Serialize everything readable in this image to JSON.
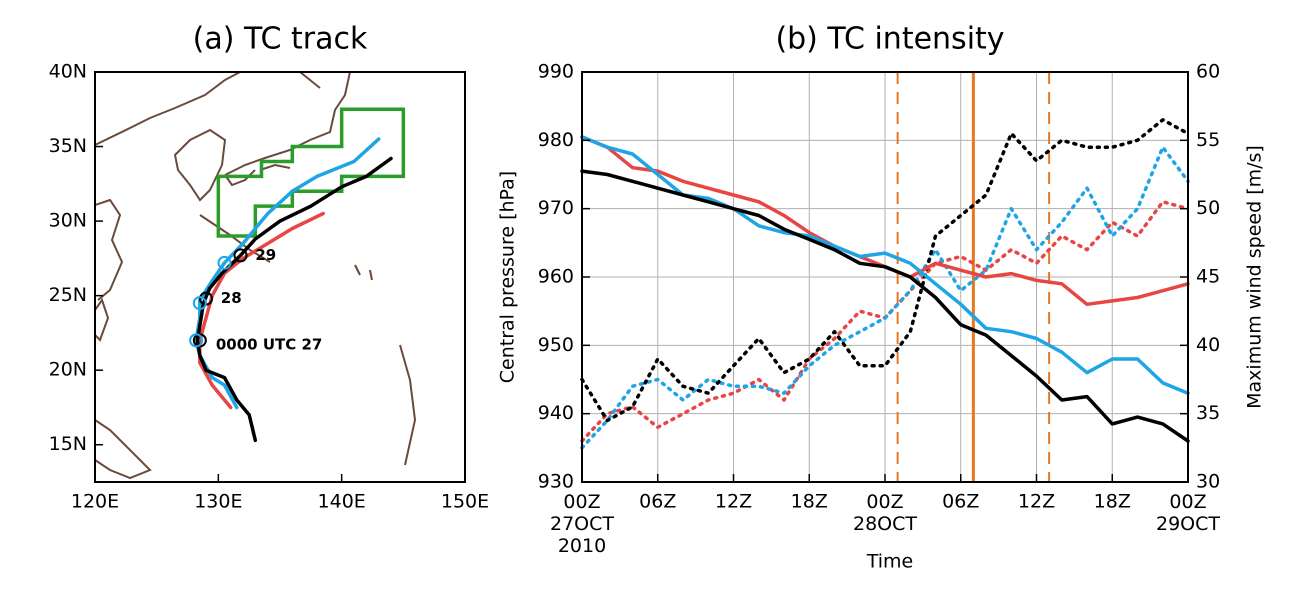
{
  "chart_data": [
    {
      "type": "line",
      "title": "(a) TC track",
      "xlim": [
        120,
        150
      ],
      "ylim": [
        12.5,
        40
      ],
      "xticks": [
        {
          "value": 120,
          "label": "120E"
        },
        {
          "value": 130,
          "label": "130E"
        },
        {
          "value": 140,
          "label": "140E"
        },
        {
          "value": 150,
          "label": "150E"
        }
      ],
      "yticks": [
        {
          "value": 15,
          "label": "15N"
        },
        {
          "value": 20,
          "label": "20N"
        },
        {
          "value": 25,
          "label": "25N"
        },
        {
          "value": 30,
          "label": "30N"
        },
        {
          "value": 35,
          "label": "35N"
        },
        {
          "value": 40,
          "label": "40N"
        }
      ],
      "series": [
        {
          "color": "#e84545",
          "x": [
            131,
            129.5,
            128.5,
            128.5,
            129,
            129.5,
            130.5,
            132,
            134,
            136,
            138.5
          ],
          "values": [
            17.5,
            19,
            20.5,
            22,
            23.5,
            25,
            26.5,
            27.5,
            28.5,
            29.5,
            30.5
          ]
        },
        {
          "color": "#1ea5e6",
          "x": [
            131.5,
            130.5,
            129.5,
            128.5,
            128.2,
            128.5,
            128.5,
            129.5,
            130.5,
            132,
            134,
            136,
            138,
            141,
            143
          ],
          "values": [
            17.5,
            19,
            19.5,
            21,
            22,
            23.5,
            24.7,
            26,
            27.2,
            28.5,
            30.5,
            32,
            33,
            34,
            35.5
          ]
        },
        {
          "color": "#000000",
          "x": [
            133,
            132.5,
            131.5,
            130.5,
            129,
            128.5,
            128.3,
            128.6,
            128.8,
            129.3,
            130.3,
            131.8,
            133,
            135,
            137.5,
            140,
            142,
            144
          ],
          "values": [
            15.3,
            17,
            18,
            19.5,
            20,
            21,
            22,
            23.5,
            24.5,
            25.5,
            26.5,
            27.7,
            28.8,
            30,
            31,
            32.3,
            33,
            34.2
          ]
        }
      ],
      "box": {
        "color": "#2a9d2a",
        "points": [
          [
            130,
            29
          ],
          [
            133,
            29
          ],
          [
            133,
            31
          ],
          [
            136,
            31
          ],
          [
            136,
            32
          ],
          [
            140,
            32
          ],
          [
            140,
            33
          ],
          [
            145,
            33
          ],
          [
            145,
            37.5
          ],
          [
            140,
            37.5
          ],
          [
            140,
            35
          ],
          [
            136,
            35
          ],
          [
            136,
            34
          ],
          [
            133.5,
            34
          ],
          [
            133.5,
            33
          ],
          [
            130,
            33
          ]
        ]
      },
      "markers": [
        {
          "color": "#000000",
          "x": 131.8,
          "y": 27.7
        },
        {
          "color": "#000000",
          "x": 129,
          "y": 24.8
        },
        {
          "color": "#000000",
          "x": 128.5,
          "y": 22
        },
        {
          "color": "#1ea5e6",
          "x": 130.5,
          "y": 27.2
        },
        {
          "color": "#1ea5e6",
          "x": 128.5,
          "y": 24.5
        },
        {
          "color": "#1ea5e6",
          "x": 128.2,
          "y": 22
        }
      ],
      "annotations": [
        {
          "text": "29",
          "x": 133,
          "y": 27.7
        },
        {
          "text": "28",
          "x": 130.2,
          "y": 24.8
        },
        {
          "text": "0000 UTC 27",
          "x": 129.8,
          "y": 21.7
        }
      ]
    },
    {
      "type": "line",
      "title": "(b) TC intensity",
      "xlabel": "Time",
      "ylabel": "Central pressure [hPa]",
      "y2label": "Maximum wind speed [m/s]",
      "x": [
        0,
        2,
        4,
        6,
        8,
        10,
        12,
        14,
        16,
        18,
        20,
        22,
        24,
        26,
        28,
        30,
        32,
        34,
        36,
        38,
        40,
        42,
        44,
        46,
        48
      ],
      "xlim": [
        0,
        48
      ],
      "xticks": [
        {
          "value": 0,
          "label": "00Z\n27OCT\n2010"
        },
        {
          "value": 6,
          "label": "06Z"
        },
        {
          "value": 12,
          "label": "12Z"
        },
        {
          "value": 18,
          "label": "18Z"
        },
        {
          "value": 24,
          "label": "00Z\n28OCT"
        },
        {
          "value": 30,
          "label": "06Z"
        },
        {
          "value": 36,
          "label": "12Z"
        },
        {
          "value": 42,
          "label": "18Z"
        },
        {
          "value": 48,
          "label": "00Z\n29OCT"
        }
      ],
      "ylim": [
        930,
        990
      ],
      "yticks": [
        930,
        940,
        950,
        960,
        970,
        980,
        990
      ],
      "y2lim": [
        30,
        60
      ],
      "y2ticks": [
        30,
        35,
        40,
        45,
        50,
        55,
        60
      ],
      "grid": true,
      "vlines": [
        {
          "x": 25,
          "style": "dashed",
          "color": "#e87722"
        },
        {
          "x": 31,
          "style": "solid",
          "color": "#e87722"
        },
        {
          "x": 37,
          "style": "dashed",
          "color": "#e87722"
        }
      ],
      "series": [
        {
          "color": "#e84545",
          "style": "dotted",
          "axis": "y2",
          "values": [
            33,
            35,
            35.5,
            34,
            35,
            36,
            36.5,
            37.5,
            36,
            39,
            40.5,
            42.5,
            42,
            44,
            46,
            46.5,
            45.5,
            47,
            46,
            48,
            47,
            49,
            48,
            50.5,
            50
          ]
        },
        {
          "color": "#1ea5e6",
          "style": "dotted",
          "axis": "y2",
          "values": [
            32.5,
            34.5,
            37,
            37.5,
            36,
            37.5,
            37,
            37,
            36.5,
            38.5,
            40,
            41,
            42,
            44,
            47,
            44,
            45.5,
            50,
            47,
            49,
            51.5,
            48,
            50,
            54.5,
            52
          ]
        },
        {
          "color": "#000000",
          "style": "dotted",
          "axis": "y2",
          "values": [
            37.5,
            34.5,
            35.5,
            39,
            37,
            36.5,
            38.5,
            40.5,
            38,
            39,
            41,
            38.5,
            38.5,
            41,
            48,
            49.5,
            51,
            55.5,
            53.5,
            55,
            54.5,
            54.5,
            55,
            56.5,
            55.5
          ]
        },
        {
          "color": "#e84545",
          "style": "solid",
          "values": [
            980.5,
            979,
            976,
            975.5,
            974,
            973,
            972,
            971,
            969,
            966.5,
            964.5,
            963,
            961.5,
            960,
            962,
            961,
            960,
            960.5,
            959.5,
            959,
            956,
            956.5,
            957,
            958,
            959
          ]
        },
        {
          "color": "#1ea5e6",
          "style": "solid",
          "values": [
            980.5,
            979,
            978,
            975,
            972,
            971.5,
            970,
            967.5,
            966.5,
            966,
            964.5,
            963,
            963.5,
            962,
            959,
            956,
            952.5,
            952,
            951,
            949,
            946,
            948,
            948,
            944.5,
            943
          ]
        },
        {
          "color": "#000000",
          "style": "solid",
          "values": [
            975.5,
            975,
            974,
            973,
            972,
            971,
            970,
            969,
            967,
            965.5,
            964,
            962,
            961.5,
            960,
            957,
            953,
            951.5,
            948.5,
            945.5,
            942,
            942.5,
            938.5,
            939.5,
            938.5,
            936
          ]
        }
      ]
    }
  ]
}
